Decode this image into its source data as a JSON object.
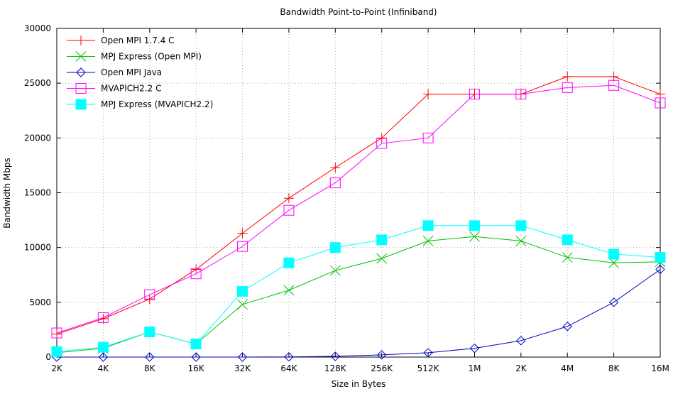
{
  "chart_data": {
    "type": "line",
    "title": "Bandwidth Point-to-Point (Infiniband)",
    "xlabel": "Size in Bytes",
    "ylabel": "Bandwidth Mbps",
    "categories": [
      "2K",
      "4K",
      "8K",
      "16K",
      "32K",
      "64K",
      "128K",
      "256K",
      "512K",
      "1M",
      "2K",
      "4M",
      "8K",
      "16M"
    ],
    "ylim": [
      0,
      30000
    ],
    "yticks": [
      0,
      5000,
      10000,
      15000,
      20000,
      25000,
      30000
    ],
    "grid": true,
    "legend_position": "top-left",
    "series": [
      {
        "name": "Open MPI 1.7.4 C",
        "color": "#ff0000",
        "marker": "plus",
        "values": [
          2100,
          3500,
          5300,
          8000,
          11300,
          14500,
          17300,
          20000,
          24000,
          24000,
          24000,
          25600,
          25600,
          24000
        ]
      },
      {
        "name": "MPJ Express (Open MPI)",
        "color": "#00c000",
        "marker": "cross",
        "values": [
          400,
          800,
          2300,
          1200,
          4800,
          6100,
          7900,
          9000,
          10600,
          11000,
          10600,
          9100,
          8600,
          8700
        ]
      },
      {
        "name": "Open MPI Java",
        "color": "#0000c0",
        "marker": "diamond",
        "values": [
          0,
          0,
          0,
          0,
          0,
          20,
          70,
          200,
          400,
          800,
          1500,
          2800,
          5000,
          8000
        ]
      },
      {
        "name": "MVAPICH2.2 C",
        "color": "#ff00ff",
        "marker": "square-open",
        "values": [
          2200,
          3600,
          5700,
          7600,
          10100,
          13400,
          15900,
          19500,
          20000,
          24000,
          24000,
          24600,
          24800,
          23200
        ]
      },
      {
        "name": "MPJ Express (MVAPICH2.2)",
        "color": "#00ffff",
        "marker": "square-filled",
        "values": [
          500,
          900,
          2300,
          1200,
          6000,
          8600,
          10000,
          10700,
          12000,
          12000,
          12000,
          10700,
          9400,
          9100
        ]
      }
    ]
  }
}
